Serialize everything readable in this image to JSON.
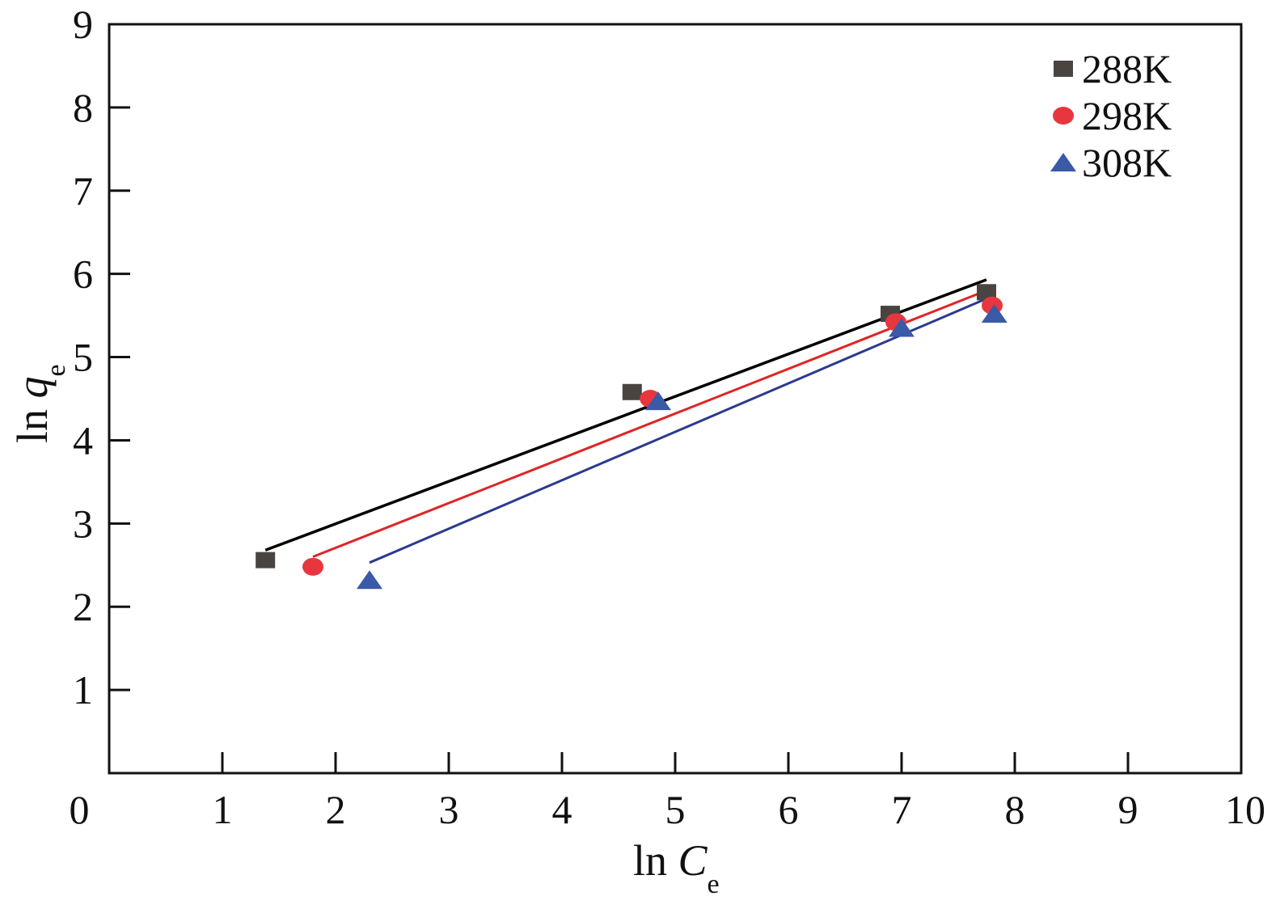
{
  "chart_data": {
    "type": "scatter",
    "xlabel": {
      "prefix": "ln ",
      "var": "C",
      "sub": "e"
    },
    "ylabel": {
      "prefix": "ln ",
      "var": "q",
      "sub": "e"
    },
    "xlim": [
      0,
      10
    ],
    "ylim": [
      0,
      9
    ],
    "xticks": [
      "0",
      "1",
      "2",
      "3",
      "4",
      "5",
      "6",
      "7",
      "8",
      "9",
      "10"
    ],
    "yticks": [
      "1",
      "2",
      "3",
      "4",
      "5",
      "6",
      "7",
      "8",
      "9"
    ],
    "grid": false,
    "legend_position": "top-right",
    "series": [
      {
        "name": "288K",
        "marker": "square",
        "marker_color": "#4a4440",
        "line_color": "#000000",
        "points": [
          [
            1.38,
            2.56
          ],
          [
            4.62,
            4.58
          ],
          [
            6.9,
            5.52
          ],
          [
            7.75,
            5.78
          ]
        ],
        "fit": [
          [
            1.38,
            2.68
          ],
          [
            7.75,
            5.93
          ]
        ]
      },
      {
        "name": "298K",
        "marker": "circle",
        "marker_color": "#e8363f",
        "line_color": "#e02424",
        "points": [
          [
            1.8,
            2.48
          ],
          [
            4.78,
            4.5
          ],
          [
            6.95,
            5.42
          ],
          [
            7.8,
            5.62
          ]
        ],
        "fit": [
          [
            1.8,
            2.6
          ],
          [
            7.75,
            5.8
          ]
        ]
      },
      {
        "name": "308K",
        "marker": "triangle",
        "marker_color": "#3a5aa8",
        "line_color": "#2b3a8f",
        "points": [
          [
            2.3,
            2.32
          ],
          [
            4.85,
            4.47
          ],
          [
            7.0,
            5.35
          ],
          [
            7.82,
            5.52
          ]
        ],
        "fit": [
          [
            2.3,
            2.53
          ],
          [
            7.78,
            5.72
          ]
        ]
      }
    ]
  }
}
